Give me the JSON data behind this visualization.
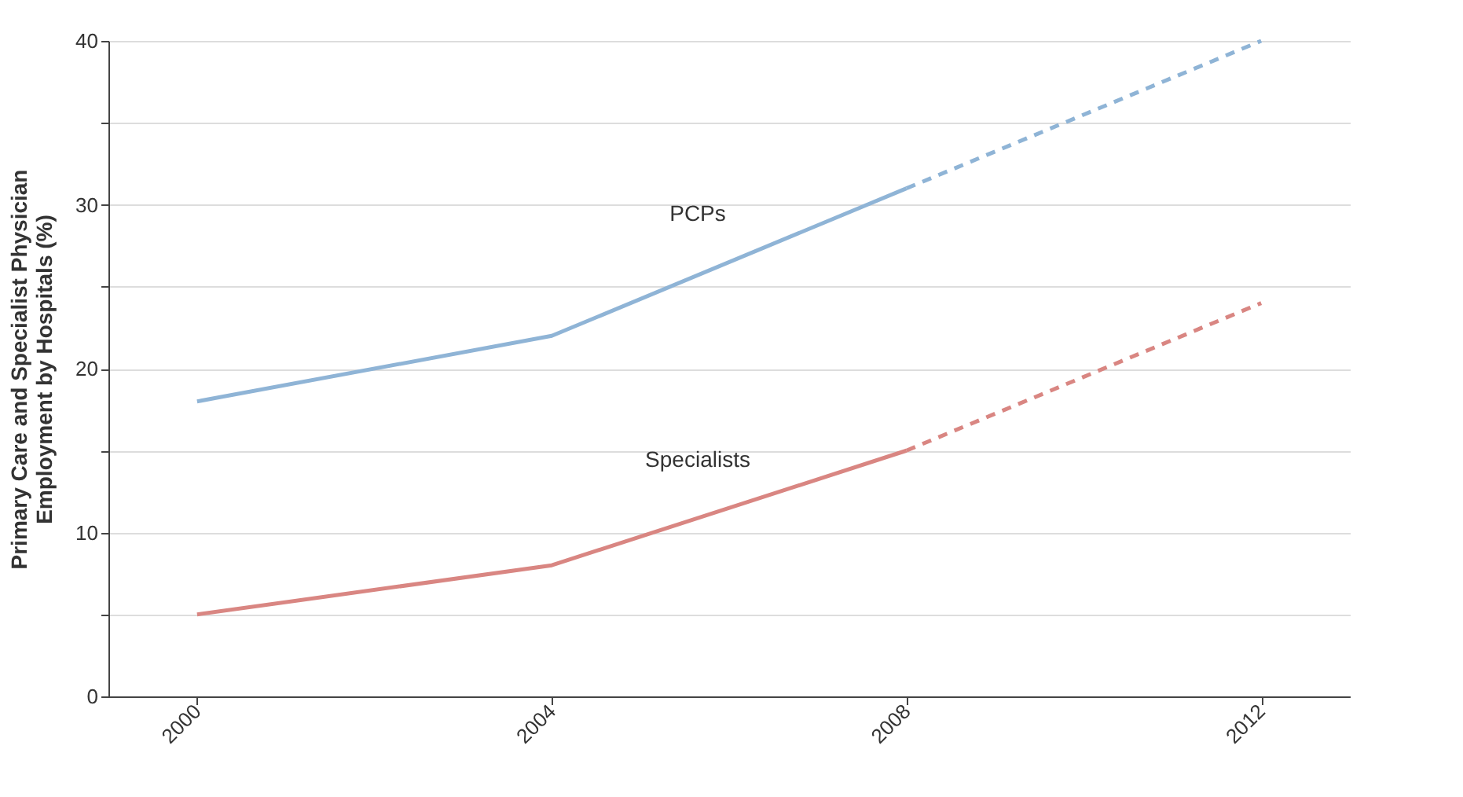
{
  "chart_data": {
    "type": "line",
    "ylabel": "Primary Care and Specialist Physician\nEmployment by Hospitals (%)",
    "xlim": [
      1999,
      2013
    ],
    "xticks": [
      2000,
      2004,
      2008,
      2012
    ],
    "ylim": [
      0,
      40
    ],
    "yticks": [
      0,
      {
        "value": 5,
        "label": null
      },
      10,
      {
        "value": 15,
        "label": null
      },
      20,
      {
        "value": 25,
        "label": null
      },
      30,
      {
        "value": 35,
        "label": null
      },
      40
    ],
    "grid": "y",
    "marker": "none",
    "series": [
      {
        "name": "PCPs",
        "color": "#8fb4d6",
        "line_style": "solid",
        "x": [
          2000,
          2004,
          2008
        ],
        "values": [
          18,
          22,
          31
        ]
      },
      {
        "color": "#8fb4d6",
        "line_style": "dashed",
        "x": [
          2008,
          2012
        ],
        "values": [
          31,
          40
        ]
      },
      {
        "name": "Specialists",
        "color": "#d98682",
        "line_style": "solid",
        "x": [
          2000,
          2004,
          2008
        ],
        "values": [
          5,
          8,
          15
        ]
      },
      {
        "color": "#d98682",
        "line_style": "dashed",
        "x": [
          2008,
          2012
        ],
        "values": [
          15,
          24
        ]
      }
    ]
  }
}
